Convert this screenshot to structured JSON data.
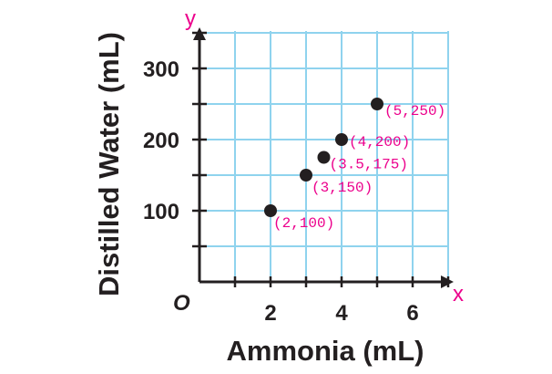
{
  "chart_data": {
    "type": "scatter",
    "xlabel": "Ammonia (mL)",
    "ylabel": "Distilled Water (mL)",
    "x_axis_letter": "x",
    "y_axis_letter": "y",
    "origin_label": "O",
    "xlim": [
      0,
      7
    ],
    "ylim": [
      0,
      350
    ],
    "x_ticks": [
      2,
      4,
      6
    ],
    "y_ticks": [
      100,
      200,
      300
    ],
    "x_tick_labels": [
      "2",
      "4",
      "6"
    ],
    "y_tick_labels": [
      "100",
      "200",
      "300"
    ],
    "grid": true,
    "points": [
      {
        "x": 2,
        "y": 100,
        "label": "(2,100)"
      },
      {
        "x": 3,
        "y": 150,
        "label": "(3,150)"
      },
      {
        "x": 3.5,
        "y": 175,
        "label": "(3.5,175)"
      },
      {
        "x": 4,
        "y": 200,
        "label": "(4,200)"
      },
      {
        "x": 5,
        "y": 250,
        "label": "(5,250)"
      }
    ]
  },
  "colors": {
    "grid": "#8fd3ee",
    "axis": "#231f20",
    "point": "#231f20",
    "accent": "#ec008c"
  }
}
